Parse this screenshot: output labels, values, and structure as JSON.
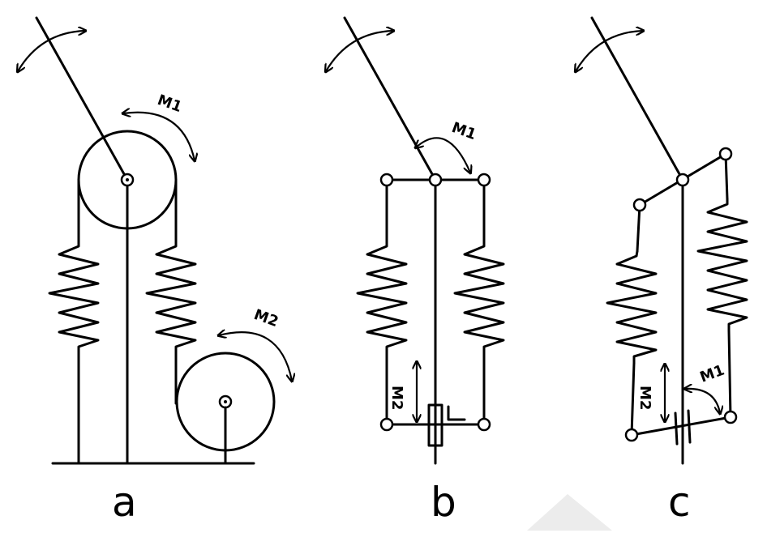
{
  "panels": [
    {
      "caption": "a",
      "labels": [
        "M1",
        "M2"
      ]
    },
    {
      "caption": "b",
      "labels": [
        "M1",
        "M2"
      ]
    },
    {
      "caption": "c",
      "labels": [
        "M1",
        "M2"
      ]
    }
  ]
}
